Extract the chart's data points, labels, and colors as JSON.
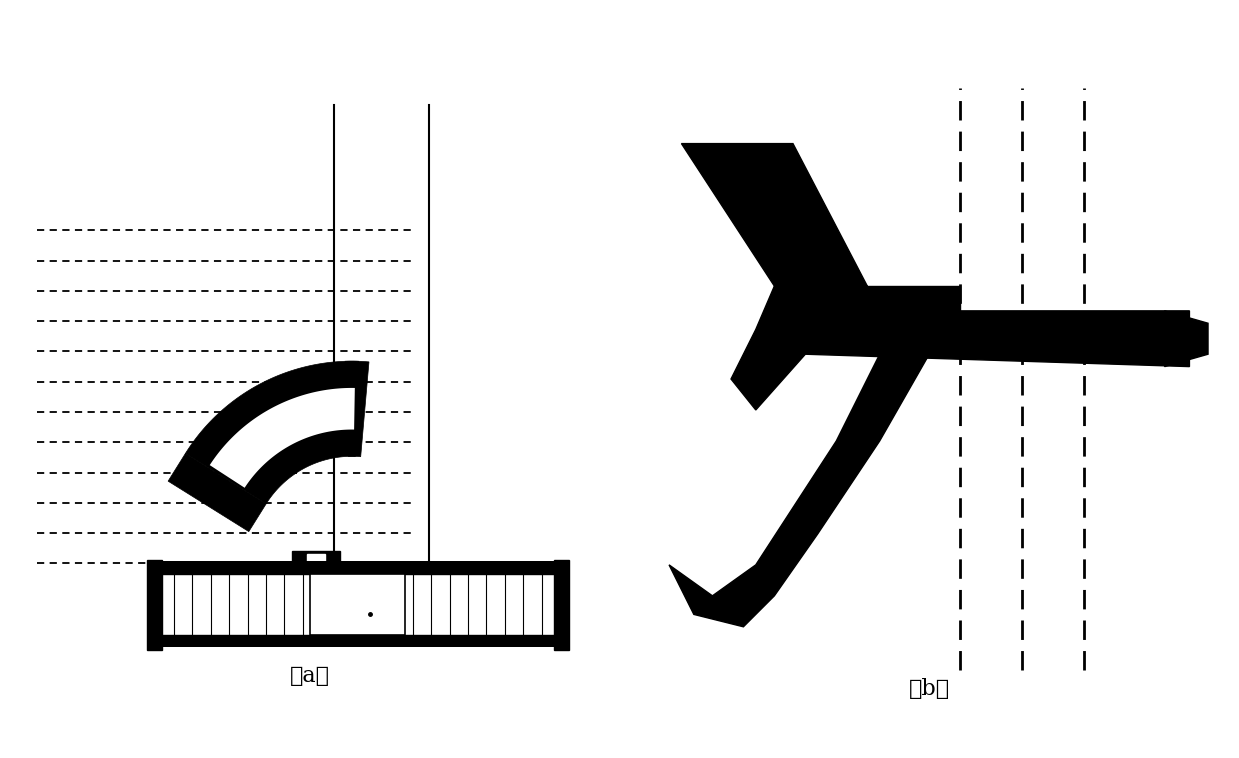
{
  "background_color": "#ffffff",
  "fig_width": 12.39,
  "fig_height": 7.58,
  "label_a": "（a）",
  "label_b": "（b）",
  "label_fontsize": 16,
  "black": "#000000",
  "white": "#ffffff"
}
